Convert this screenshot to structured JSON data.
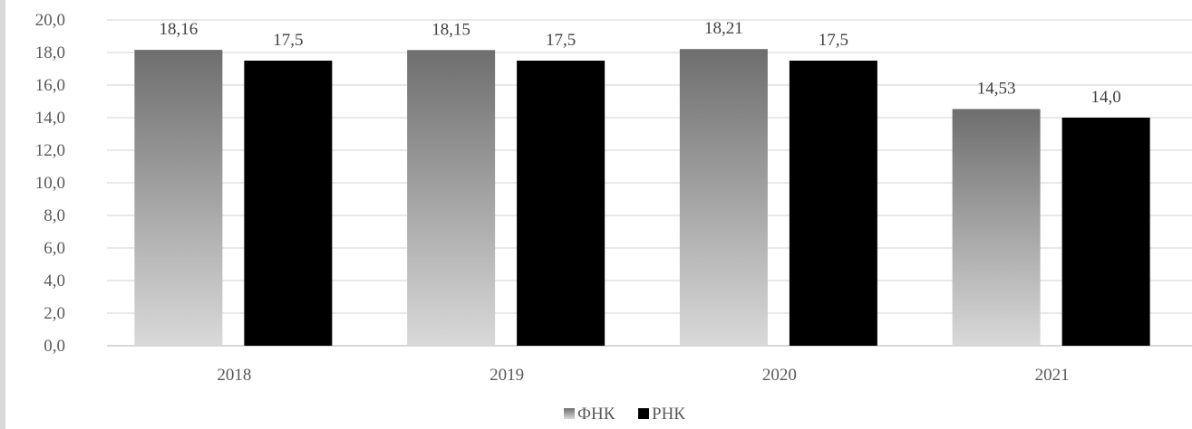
{
  "chart_data": {
    "type": "bar",
    "categories": [
      "2018",
      "2019",
      "2020",
      "2021"
    ],
    "series": [
      {
        "name": "ФНК",
        "values": [
          18.16,
          18.15,
          18.21,
          14.53
        ],
        "labels": [
          "18,16",
          "18,15",
          "18,21",
          "14,53"
        ],
        "color": "#7a7a7a",
        "gradient": [
          "#6e6e6e",
          "#d9d9d9"
        ]
      },
      {
        "name": "РНК",
        "values": [
          17.5,
          17.5,
          17.5,
          14.0
        ],
        "labels": [
          "17,5",
          "17,5",
          "17,5",
          "14,0"
        ],
        "color": "#000000"
      }
    ],
    "ylim": [
      0,
      20
    ],
    "yticks": [
      0,
      2,
      4,
      6,
      8,
      10,
      12,
      14,
      16,
      18,
      20
    ],
    "ytick_labels": [
      "0,0",
      "2,0",
      "4,0",
      "6,0",
      "8,0",
      "10,0",
      "12,0",
      "14,0",
      "16,0",
      "18,0",
      "20,0"
    ],
    "grid": true,
    "legend_position": "bottom"
  }
}
